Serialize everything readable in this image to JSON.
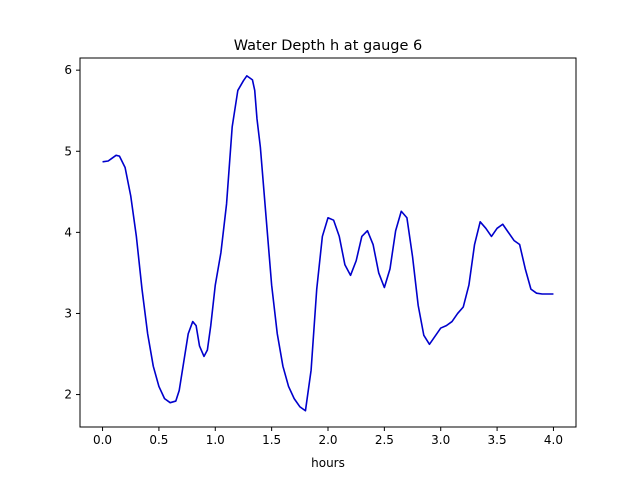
{
  "chart_data": {
    "type": "line",
    "title": "Water Depth h at gauge 6",
    "xlabel": "hours",
    "ylabel": "",
    "xlim": [
      -0.2,
      4.2
    ],
    "ylim": [
      1.6,
      6.15
    ],
    "xticks": [
      0.0,
      0.5,
      1.0,
      1.5,
      2.0,
      2.5,
      3.0,
      3.5,
      4.0
    ],
    "xtick_labels": [
      "0.0",
      "0.5",
      "1.0",
      "1.5",
      "2.0",
      "2.5",
      "3.0",
      "3.5",
      "4.0"
    ],
    "yticks": [
      2,
      3,
      4,
      5,
      6
    ],
    "ytick_labels": [
      "2",
      "3",
      "4",
      "5",
      "6"
    ],
    "grid": false,
    "series": [
      {
        "color": "#0000cc",
        "x": [
          0.0,
          0.05,
          0.08,
          0.12,
          0.15,
          0.2,
          0.25,
          0.3,
          0.35,
          0.4,
          0.45,
          0.5,
          0.55,
          0.6,
          0.65,
          0.68,
          0.72,
          0.76,
          0.8,
          0.83,
          0.86,
          0.9,
          0.93,
          0.96,
          1.0,
          1.05,
          1.1,
          1.15,
          1.2,
          1.25,
          1.28,
          1.31,
          1.33,
          1.35,
          1.37,
          1.4,
          1.45,
          1.5,
          1.55,
          1.6,
          1.65,
          1.7,
          1.75,
          1.8,
          1.85,
          1.9,
          1.95,
          2.0,
          2.05,
          2.1,
          2.15,
          2.2,
          2.25,
          2.3,
          2.35,
          2.4,
          2.45,
          2.5,
          2.55,
          2.6,
          2.65,
          2.7,
          2.75,
          2.8,
          2.85,
          2.9,
          2.95,
          3.0,
          3.05,
          3.1,
          3.15,
          3.2,
          3.25,
          3.3,
          3.35,
          3.4,
          3.45,
          3.5,
          3.55,
          3.6,
          3.65,
          3.7,
          3.75,
          3.8,
          3.85,
          3.9,
          3.95,
          4.0
        ],
        "values": [
          4.87,
          4.88,
          4.91,
          4.95,
          4.94,
          4.8,
          4.45,
          3.95,
          3.3,
          2.75,
          2.35,
          2.1,
          1.95,
          1.9,
          1.92,
          2.05,
          2.4,
          2.75,
          2.9,
          2.85,
          2.6,
          2.47,
          2.55,
          2.85,
          3.35,
          3.75,
          4.35,
          5.3,
          5.75,
          5.87,
          5.93,
          5.9,
          5.88,
          5.75,
          5.4,
          5.05,
          4.2,
          3.35,
          2.75,
          2.35,
          2.1,
          1.95,
          1.85,
          1.8,
          2.3,
          3.3,
          3.95,
          4.18,
          4.15,
          3.95,
          3.6,
          3.47,
          3.65,
          3.95,
          4.02,
          3.85,
          3.5,
          3.32,
          3.55,
          4.02,
          4.26,
          4.18,
          3.7,
          3.1,
          2.73,
          2.62,
          2.72,
          2.82,
          2.85,
          2.9,
          3.0,
          3.08,
          3.35,
          3.85,
          4.13,
          4.05,
          3.95,
          4.05,
          4.1,
          4.0,
          3.9,
          3.85,
          3.55,
          3.3,
          3.25,
          3.24,
          3.24,
          3.24
        ]
      }
    ]
  }
}
